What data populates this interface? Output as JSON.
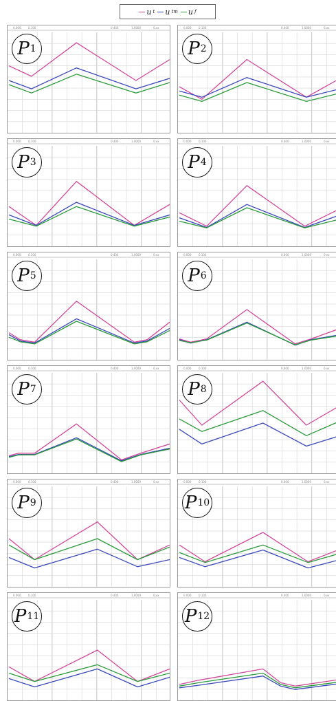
{
  "legend": [
    {
      "label": "u",
      "sub": "t",
      "color": "#d0489a"
    },
    {
      "label": "u",
      "sub": "tm",
      "color": "#3a48b8"
    },
    {
      "label": "u",
      "sub": "f",
      "color": "#2a9a3a"
    }
  ],
  "chart_data": [
    {
      "type": "line",
      "title": "P1",
      "header": [
        "0.000",
        "0.100",
        "0.400",
        "1.0000",
        "0.xx"
      ],
      "ylim": [
        -1.2,
        1.2
      ],
      "series": [
        {
          "name": "",
          "color": "#d0489a",
          "x": [
            0,
            0.14,
            0.42,
            0.79,
            1.0
          ],
          "y": [
            0.4,
            0.15,
            0.95,
            0.05,
            0.55
          ]
        },
        {
          "name": "",
          "color": "#3a48b8",
          "x": [
            0,
            0.14,
            0.42,
            0.79,
            1.0
          ],
          "y": [
            0.05,
            -0.15,
            0.35,
            -0.15,
            0.1
          ]
        },
        {
          "name": "",
          "color": "#2a9a3a",
          "x": [
            0,
            0.14,
            0.42,
            0.79,
            1.0
          ],
          "y": [
            -0.05,
            -0.25,
            0.2,
            -0.25,
            0.0
          ]
        }
      ]
    },
    {
      "type": "line",
      "title": "P2",
      "header": [
        "0.000",
        "0.100",
        "0.400",
        "1.0000",
        "0.xx"
      ],
      "ylim": [
        -1.2,
        1.2
      ],
      "series": [
        {
          "name": "",
          "color": "#d0489a",
          "x": [
            0,
            0.14,
            0.42,
            0.79,
            1.0
          ],
          "y": [
            -0.1,
            -0.4,
            0.55,
            -0.35,
            0.1
          ]
        },
        {
          "name": "",
          "color": "#3a48b8",
          "x": [
            0,
            0.14,
            0.42,
            0.79,
            1.0
          ],
          "y": [
            -0.2,
            -0.35,
            0.12,
            -0.35,
            -0.15
          ]
        },
        {
          "name": "",
          "color": "#2a9a3a",
          "x": [
            0,
            0.14,
            0.42,
            0.79,
            1.0
          ],
          "y": [
            -0.3,
            -0.45,
            0.0,
            -0.45,
            -0.25
          ]
        }
      ]
    },
    {
      "type": "line",
      "title": "P3",
      "header": [
        "0.000",
        "0.100",
        "0.400",
        "1.0000",
        "0.xx"
      ],
      "ylim": [
        -1.2,
        1.2
      ],
      "series": [
        {
          "name": "",
          "color": "#d0489a",
          "x": [
            0,
            0.17,
            0.42,
            0.78,
            1.0
          ],
          "y": [
            -0.25,
            -0.7,
            0.35,
            -0.7,
            -0.2
          ]
        },
        {
          "name": "",
          "color": "#3a48b8",
          "x": [
            0,
            0.17,
            0.42,
            0.78,
            1.0
          ],
          "y": [
            -0.45,
            -0.7,
            -0.15,
            -0.7,
            -0.45
          ]
        },
        {
          "name": "",
          "color": "#2a9a3a",
          "x": [
            0,
            0.17,
            0.42,
            0.78,
            1.0
          ],
          "y": [
            -0.55,
            -0.72,
            -0.25,
            -0.72,
            -0.5
          ]
        }
      ]
    },
    {
      "type": "line",
      "title": "P4",
      "header": [
        "0.000",
        "0.100",
        "0.400",
        "1.0000",
        "0.xx"
      ],
      "ylim": [
        -1.2,
        1.2
      ],
      "series": [
        {
          "name": "",
          "color": "#d0489a",
          "x": [
            0,
            0.17,
            0.42,
            0.78,
            1.0
          ],
          "y": [
            -0.4,
            -0.72,
            0.25,
            -0.72,
            -0.3
          ]
        },
        {
          "name": "",
          "color": "#3a48b8",
          "x": [
            0,
            0.17,
            0.42,
            0.78,
            1.0
          ],
          "y": [
            -0.52,
            -0.75,
            -0.2,
            -0.75,
            -0.45
          ]
        },
        {
          "name": "",
          "color": "#2a9a3a",
          "x": [
            0,
            0.17,
            0.42,
            0.78,
            1.0
          ],
          "y": [
            -0.6,
            -0.76,
            -0.28,
            -0.76,
            -0.55
          ]
        }
      ]
    },
    {
      "type": "line",
      "title": "P5",
      "header": [
        "0.000",
        "0.100",
        "0.400",
        "1.0000",
        "0.xx"
      ],
      "ylim": [
        -1.2,
        1.2
      ],
      "series": [
        {
          "name": "",
          "color": "#d0489a",
          "x": [
            0,
            0.07,
            0.16,
            0.42,
            0.78,
            0.86,
            1.0
          ],
          "y": [
            -0.55,
            -0.72,
            -0.78,
            0.2,
            -0.78,
            -0.72,
            -0.3
          ]
        },
        {
          "name": "",
          "color": "#3a48b8",
          "x": [
            0,
            0.07,
            0.16,
            0.42,
            0.78,
            0.86,
            1.0
          ],
          "y": [
            -0.6,
            -0.75,
            -0.8,
            -0.22,
            -0.8,
            -0.75,
            -0.45
          ]
        },
        {
          "name": "",
          "color": "#2a9a3a",
          "x": [
            0,
            0.07,
            0.16,
            0.42,
            0.78,
            0.86,
            1.0
          ],
          "y": [
            -0.66,
            -0.77,
            -0.82,
            -0.28,
            -0.82,
            -0.77,
            -0.5
          ]
        }
      ]
    },
    {
      "type": "line",
      "title": "P6",
      "header": [
        "0.000",
        "0.100",
        "0.400",
        "1.0000",
        "0.xx"
      ],
      "ylim": [
        -1.2,
        1.2
      ],
      "series": [
        {
          "name": "",
          "color": "#d0489a",
          "x": [
            0,
            0.07,
            0.17,
            0.42,
            0.72,
            0.82,
            1.0
          ],
          "y": [
            -0.7,
            -0.78,
            -0.7,
            0.0,
            -0.82,
            -0.7,
            -0.45
          ]
        },
        {
          "name": "",
          "color": "#3a48b8",
          "x": [
            0,
            0.07,
            0.17,
            0.42,
            0.72,
            0.82,
            1.0
          ],
          "y": [
            -0.72,
            -0.8,
            -0.72,
            -0.3,
            -0.85,
            -0.72,
            -0.6
          ]
        },
        {
          "name": "",
          "color": "#2a9a3a",
          "x": [
            0,
            0.07,
            0.17,
            0.42,
            0.72,
            0.82,
            1.0
          ],
          "y": [
            -0.74,
            -0.79,
            -0.73,
            -0.32,
            -0.84,
            -0.73,
            -0.62
          ]
        }
      ]
    },
    {
      "type": "line",
      "title": "P7",
      "header": [
        "0.000",
        "0.100",
        "0.400",
        "1.0000",
        "0.xx"
      ],
      "ylim": [
        -1.2,
        1.2
      ],
      "series": [
        {
          "name": "",
          "color": "#d0489a",
          "x": [
            0,
            0.06,
            0.16,
            0.42,
            0.7,
            0.82,
            1.0
          ],
          "y": [
            -0.78,
            -0.72,
            -0.72,
            -0.02,
            -0.88,
            -0.72,
            -0.5
          ]
        },
        {
          "name": "",
          "color": "#3a48b8",
          "x": [
            0,
            0.06,
            0.16,
            0.42,
            0.7,
            0.82,
            1.0
          ],
          "y": [
            -0.8,
            -0.75,
            -0.75,
            -0.35,
            -0.9,
            -0.75,
            -0.6
          ]
        },
        {
          "name": "",
          "color": "#2a9a3a",
          "x": [
            0,
            0.06,
            0.16,
            0.42,
            0.7,
            0.82,
            1.0
          ],
          "y": [
            -0.82,
            -0.76,
            -0.76,
            -0.38,
            -0.92,
            -0.76,
            -0.62
          ]
        }
      ]
    },
    {
      "type": "line",
      "title": "P8",
      "header": [
        "0.000",
        "0.100",
        "0.400",
        "1.0000",
        "0.xx"
      ],
      "ylim": [
        -1.2,
        1.2
      ],
      "series": [
        {
          "name": "",
          "color": "#d0489a",
          "x": [
            0,
            0.14,
            0.52,
            0.79,
            1.0
          ],
          "y": [
            0.55,
            -0.05,
            1.0,
            -0.05,
            0.42
          ]
        },
        {
          "name": "",
          "color": "#2a9a3a",
          "x": [
            0,
            0.14,
            0.52,
            0.79,
            1.0
          ],
          "y": [
            0.1,
            -0.2,
            0.3,
            -0.3,
            0.05
          ]
        },
        {
          "name": "",
          "color": "#3a48b8",
          "x": [
            0,
            0.14,
            0.52,
            0.79,
            1.0
          ],
          "y": [
            -0.15,
            -0.5,
            0.0,
            -0.55,
            -0.3
          ]
        }
      ]
    },
    {
      "type": "line",
      "title": "P9",
      "header": [
        "0.000",
        "0.100",
        "0.400",
        "1.0000",
        "0.xx"
      ],
      "ylim": [
        -1.2,
        1.2
      ],
      "series": [
        {
          "name": "",
          "color": "#d0489a",
          "x": [
            0,
            0.16,
            0.55,
            0.8,
            1.0
          ],
          "y": [
            -0.05,
            -0.55,
            0.35,
            -0.55,
            -0.2
          ]
        },
        {
          "name": "",
          "color": "#2a9a3a",
          "x": [
            0,
            0.16,
            0.55,
            0.8,
            1.0
          ],
          "y": [
            -0.2,
            -0.55,
            -0.05,
            -0.55,
            -0.25
          ]
        },
        {
          "name": "",
          "color": "#3a48b8",
          "x": [
            0,
            0.16,
            0.55,
            0.8,
            1.0
          ],
          "y": [
            -0.5,
            -0.75,
            -0.3,
            -0.72,
            -0.55
          ]
        }
      ]
    },
    {
      "type": "line",
      "title": "P10",
      "header": [
        "0.000",
        "0.100",
        "0.400",
        "1.0000",
        "0.xx"
      ],
      "ylim": [
        -1.2,
        1.2
      ],
      "series": [
        {
          "name": "",
          "color": "#d0489a",
          "x": [
            0,
            0.16,
            0.52,
            0.8,
            1.0
          ],
          "y": [
            -0.2,
            -0.6,
            0.1,
            -0.6,
            -0.3
          ]
        },
        {
          "name": "",
          "color": "#2a9a3a",
          "x": [
            0,
            0.16,
            0.52,
            0.8,
            1.0
          ],
          "y": [
            -0.38,
            -0.62,
            -0.2,
            -0.62,
            -0.4
          ]
        },
        {
          "name": "",
          "color": "#3a48b8",
          "x": [
            0,
            0.16,
            0.52,
            0.8,
            1.0
          ],
          "y": [
            -0.5,
            -0.72,
            -0.32,
            -0.75,
            -0.55
          ]
        }
      ]
    },
    {
      "type": "line",
      "title": "P11",
      "header": [
        "0.000",
        "0.100",
        "0.400",
        "1.0000",
        "0.xx"
      ],
      "ylim": [
        -1.2,
        1.2
      ],
      "series": [
        {
          "name": "",
          "color": "#d0489a",
          "x": [
            0,
            0.16,
            0.55,
            0.8,
            1.0
          ],
          "y": [
            -0.4,
            -0.75,
            0.0,
            -0.75,
            -0.45
          ]
        },
        {
          "name": "",
          "color": "#2a9a3a",
          "x": [
            0,
            0.16,
            0.55,
            0.8,
            1.0
          ],
          "y": [
            -0.55,
            -0.75,
            -0.35,
            -0.75,
            -0.55
          ]
        },
        {
          "name": "",
          "color": "#3a48b8",
          "x": [
            0,
            0.16,
            0.55,
            0.8,
            1.0
          ],
          "y": [
            -0.68,
            -0.88,
            -0.45,
            -0.88,
            -0.65
          ]
        }
      ]
    },
    {
      "type": "line",
      "title": "P12",
      "header": [
        "0.000",
        "0.100",
        "0.400",
        "1.0000",
        "0.xx"
      ],
      "ylim": [
        -1.2,
        1.2
      ],
      "series": [
        {
          "name": "",
          "color": "#d0489a",
          "x": [
            0,
            0.12,
            0.52,
            0.63,
            0.72,
            1.0
          ],
          "y": [
            -0.82,
            -0.72,
            -0.45,
            -0.78,
            -0.86,
            -0.7
          ]
        },
        {
          "name": "",
          "color": "#2a9a3a",
          "x": [
            0,
            0.12,
            0.52,
            0.63,
            0.72,
            1.0
          ],
          "y": [
            -0.86,
            -0.78,
            -0.55,
            -0.82,
            -0.9,
            -0.76
          ]
        },
        {
          "name": "",
          "color": "#3a48b8",
          "x": [
            0,
            0.12,
            0.52,
            0.63,
            0.72,
            1.0
          ],
          "y": [
            -0.9,
            -0.84,
            -0.62,
            -0.86,
            -0.94,
            -0.8
          ]
        }
      ]
    }
  ]
}
